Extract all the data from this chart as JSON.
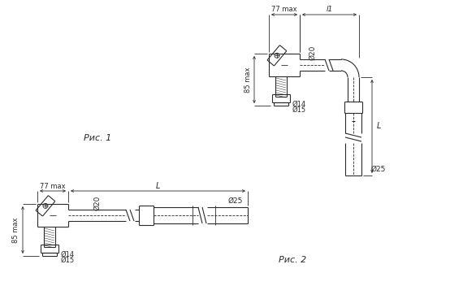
{
  "fig_width": 5.7,
  "fig_height": 3.68,
  "dpi": 100,
  "bg_color": "#ffffff",
  "lc": "#2a2a2a",
  "thin_lw": 0.6,
  "med_lw": 0.8,
  "fig1_label": "Рис. 1",
  "fig2_label": "Рис. 2",
  "ann": {
    "77max": "77 max",
    "L": "L",
    "l1": "l1",
    "85max": "85 max",
    "d20": "Ø20",
    "d25": "Ø25",
    "d14": "Ø14",
    "d15": "Ø15"
  }
}
